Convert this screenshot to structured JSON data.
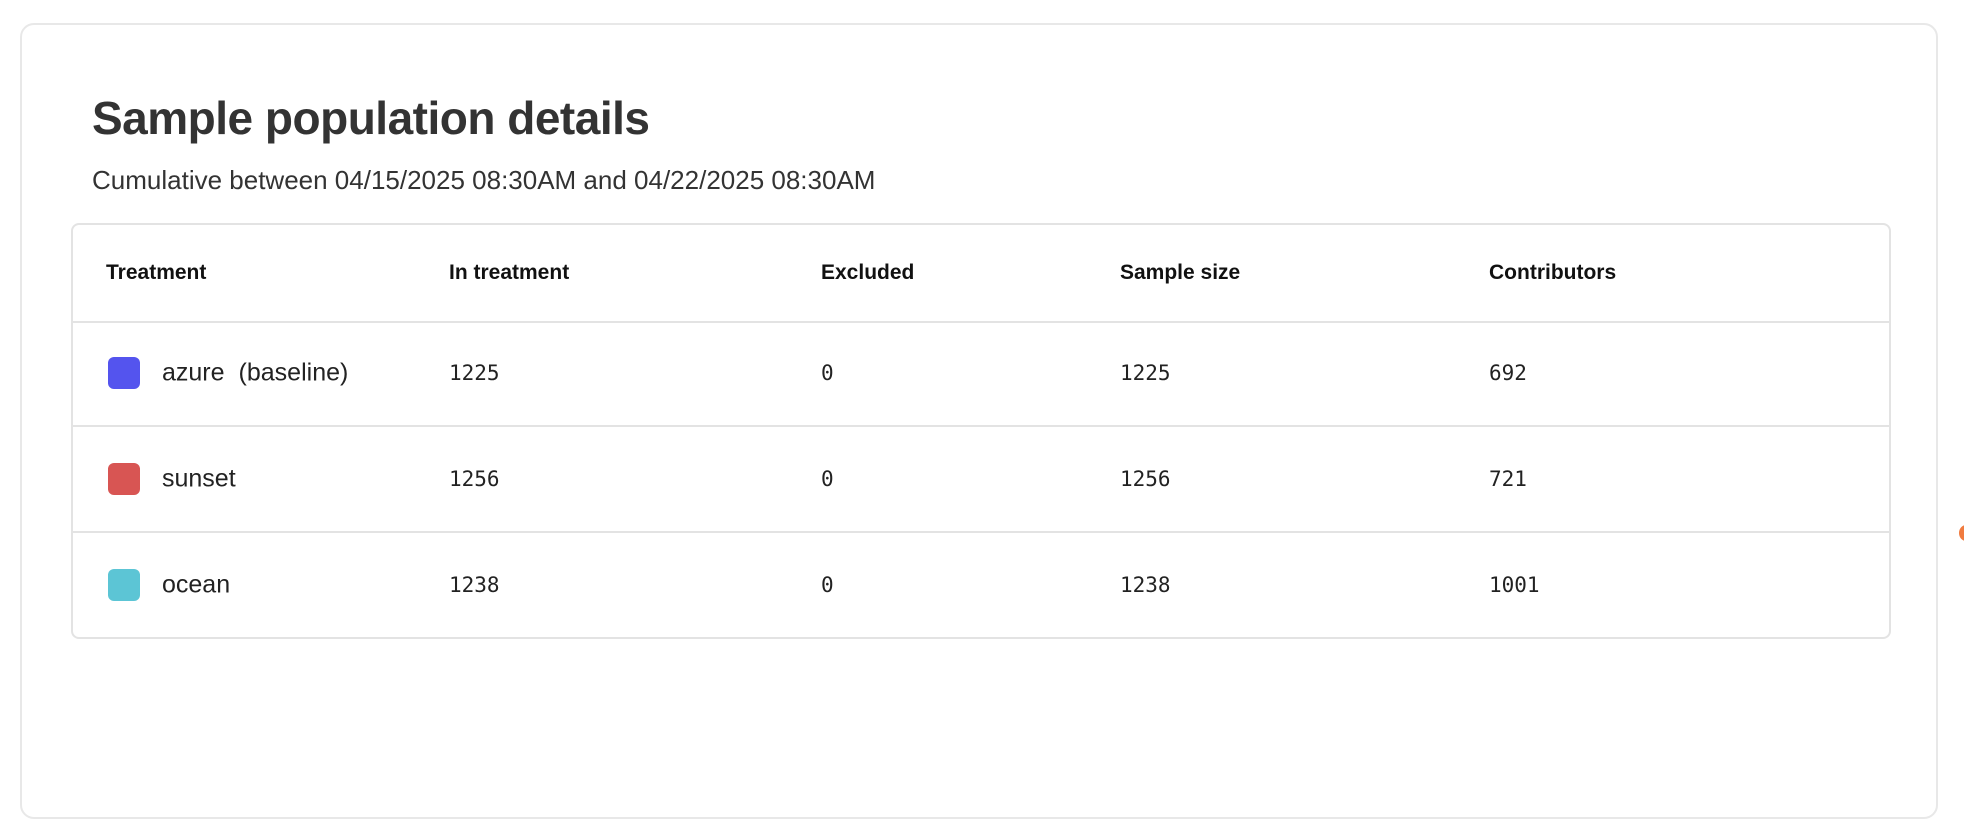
{
  "card": {
    "title": "Sample population details",
    "subtitle": "Cumulative between 04/15/2025 08:30AM and 04/22/2025 08:30AM"
  },
  "table": {
    "headers": [
      "Treatment",
      "In treatment",
      "Excluded",
      "Sample size",
      "Contributors"
    ],
    "rows": [
      {
        "name": "azure",
        "tag": "(baseline)",
        "color": "#5454EE",
        "in_treatment": "1225",
        "excluded": "0",
        "sample_size": "1225",
        "contributors": "692"
      },
      {
        "name": "sunset",
        "tag": "",
        "color": "#D85553",
        "in_treatment": "1256",
        "excluded": "0",
        "sample_size": "1256",
        "contributors": "721"
      },
      {
        "name": "ocean",
        "tag": "",
        "color": "#5CC5D5",
        "in_treatment": "1238",
        "excluded": "0",
        "sample_size": "1238",
        "contributors": "1001"
      }
    ]
  }
}
